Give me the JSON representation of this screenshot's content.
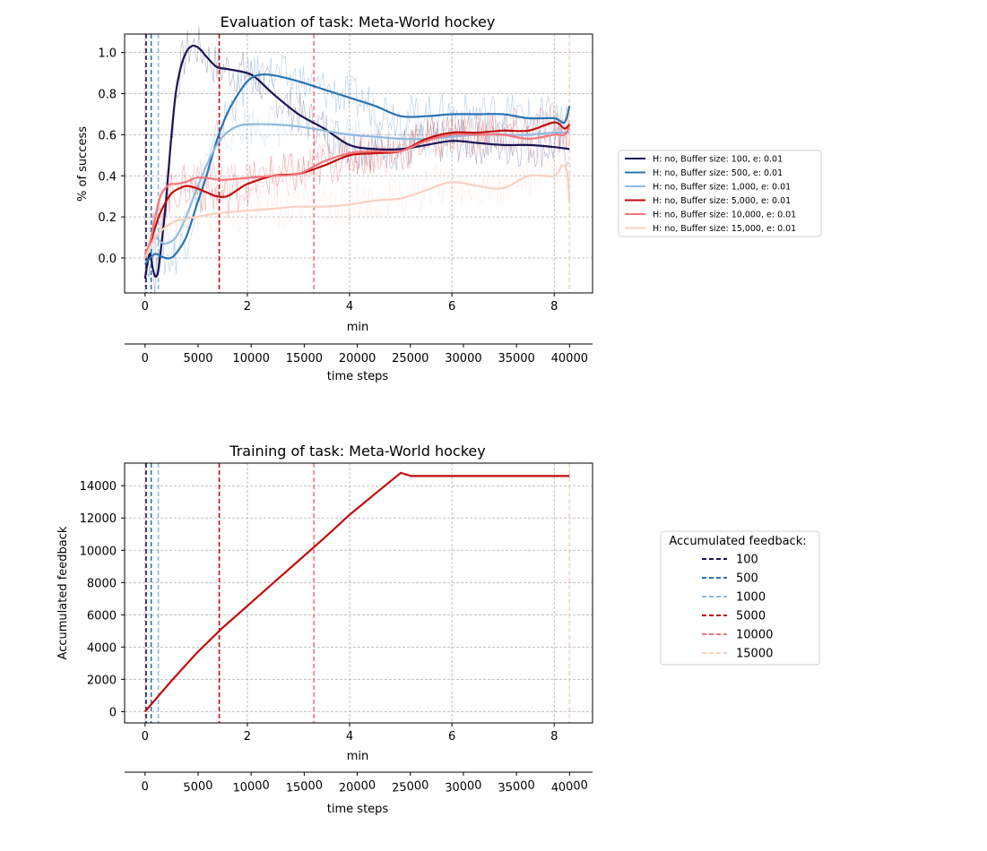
{
  "chart_data": [
    {
      "type": "line",
      "title": "Evaluation of task: Meta-World hockey",
      "xlabel": "min",
      "ylabel": "% of success",
      "secondary_xlabel": "time steps",
      "xlim": [
        -0.4,
        8.75
      ],
      "ylim": [
        -0.17,
        1.09
      ],
      "xticks": [
        0,
        2,
        4,
        6,
        8
      ],
      "yticks": [
        0.0,
        0.2,
        0.4,
        0.6,
        0.8,
        1.0
      ],
      "ytick_labels": [
        "0.0",
        "0.2",
        "0.4",
        "0.6",
        "0.8",
        "1.0"
      ],
      "secondary_xticks": [
        0,
        5000,
        10000,
        15000,
        20000,
        25000,
        30000,
        35000,
        40000
      ],
      "grid": true,
      "legend_placement": "outside-right",
      "series": [
        {
          "name": "H: no, Buffer size: 100, e: 0.01",
          "color": "#1a1456",
          "x": [
            0,
            0.05,
            0.1,
            0.15,
            0.2,
            0.25,
            0.3,
            0.4,
            0.5,
            0.6,
            0.7,
            0.8,
            0.9,
            1.0,
            1.1,
            1.2,
            1.4,
            1.6,
            2.0,
            2.2,
            2.5,
            3.0,
            3.5,
            4.0,
            4.5,
            5.0,
            5.5,
            6.0,
            6.5,
            7.0,
            7.5,
            8.0,
            8.3
          ],
          "y": [
            -0.1,
            -0.02,
            0.02,
            -0.05,
            -0.09,
            -0.07,
            0.02,
            0.25,
            0.55,
            0.8,
            0.93,
            1.0,
            1.03,
            1.03,
            1.01,
            0.98,
            0.93,
            0.92,
            0.9,
            0.87,
            0.8,
            0.7,
            0.63,
            0.55,
            0.53,
            0.53,
            0.55,
            0.57,
            0.56,
            0.55,
            0.55,
            0.54,
            0.53
          ]
        },
        {
          "name": "H: no, Buffer size: 500, e: 0.01",
          "color": "#2b74b3",
          "x": [
            0,
            0.1,
            0.2,
            0.3,
            0.4,
            0.5,
            0.6,
            0.8,
            1.0,
            1.2,
            1.4,
            1.6,
            1.8,
            2.0,
            2.2,
            2.5,
            3.0,
            3.5,
            4.0,
            4.5,
            5.0,
            5.5,
            6.0,
            6.5,
            7.0,
            7.5,
            8.0,
            8.2,
            8.3
          ],
          "y": [
            -0.03,
            0.0,
            0.02,
            0.01,
            0.0,
            0.0,
            0.02,
            0.1,
            0.25,
            0.4,
            0.57,
            0.7,
            0.79,
            0.86,
            0.89,
            0.89,
            0.86,
            0.82,
            0.78,
            0.74,
            0.69,
            0.69,
            0.7,
            0.7,
            0.7,
            0.68,
            0.68,
            0.66,
            0.74
          ]
        },
        {
          "name": "H: no, Buffer size: 1,000, e: 0.01",
          "color": "#8ebae0",
          "x": [
            0,
            0.1,
            0.2,
            0.3,
            0.4,
            0.6,
            0.8,
            1.0,
            1.2,
            1.4,
            1.6,
            1.8,
            2.0,
            2.5,
            3.0,
            3.5,
            4.0,
            4.5,
            5.0,
            5.5,
            6.0,
            6.5,
            7.0,
            7.5,
            8.0,
            8.3
          ],
          "y": [
            0.0,
            0.08,
            0.1,
            0.08,
            0.07,
            0.1,
            0.2,
            0.33,
            0.45,
            0.55,
            0.61,
            0.64,
            0.65,
            0.65,
            0.64,
            0.62,
            0.6,
            0.59,
            0.58,
            0.58,
            0.59,
            0.6,
            0.6,
            0.6,
            0.61,
            0.61
          ]
        },
        {
          "name": "H: no, Buffer size: 5,000, e: 0.01",
          "color": "#c00d0d",
          "x": [
            0,
            0.1,
            0.2,
            0.3,
            0.4,
            0.5,
            0.6,
            0.8,
            1.0,
            1.2,
            1.4,
            1.6,
            1.8,
            2.0,
            2.5,
            3.0,
            3.5,
            4.0,
            4.5,
            5.0,
            5.5,
            6.0,
            6.5,
            7.0,
            7.5,
            8.0,
            8.2,
            8.3
          ],
          "y": [
            0.0,
            0.07,
            0.15,
            0.22,
            0.27,
            0.31,
            0.33,
            0.35,
            0.34,
            0.32,
            0.3,
            0.3,
            0.33,
            0.36,
            0.4,
            0.41,
            0.45,
            0.5,
            0.51,
            0.52,
            0.58,
            0.61,
            0.61,
            0.62,
            0.62,
            0.66,
            0.63,
            0.65
          ]
        },
        {
          "name": "H: no, Buffer size: 10,000, e: 0.01",
          "color": "#f4767a",
          "x": [
            0,
            0.1,
            0.2,
            0.3,
            0.4,
            0.5,
            0.6,
            0.8,
            1.0,
            1.2,
            1.5,
            2.0,
            2.5,
            3.0,
            3.5,
            4.0,
            4.5,
            5.0,
            5.5,
            6.0,
            6.5,
            7.0,
            7.5,
            8.0,
            8.2,
            8.3
          ],
          "y": [
            0.02,
            0.08,
            0.2,
            0.3,
            0.34,
            0.36,
            0.36,
            0.37,
            0.39,
            0.39,
            0.38,
            0.39,
            0.4,
            0.41,
            0.47,
            0.51,
            0.52,
            0.52,
            0.57,
            0.6,
            0.6,
            0.6,
            0.58,
            0.6,
            0.6,
            0.64
          ]
        },
        {
          "name": "H: no, Buffer size: 15,000, e: 0.01",
          "color": "#f9d0c0",
          "x": [
            0,
            0.2,
            0.4,
            0.6,
            0.8,
            1.0,
            1.5,
            2.0,
            2.5,
            3.0,
            3.5,
            4.0,
            4.5,
            5.0,
            5.5,
            6.0,
            6.5,
            7.0,
            7.5,
            8.0,
            8.15,
            8.25,
            8.3
          ],
          "y": [
            0.0,
            0.1,
            0.15,
            0.18,
            0.19,
            0.2,
            0.22,
            0.23,
            0.24,
            0.25,
            0.25,
            0.26,
            0.28,
            0.29,
            0.33,
            0.37,
            0.35,
            0.34,
            0.4,
            0.4,
            0.45,
            0.42,
            0.27
          ]
        }
      ],
      "vlines": [
        {
          "x": 0.02,
          "color": "#1a1456"
        },
        {
          "x": 0.12,
          "color": "#2b74b3"
        },
        {
          "x": 0.26,
          "color": "#8ebae0"
        },
        {
          "x": 1.45,
          "color": "#c00d0d"
        },
        {
          "x": 3.3,
          "color": "#f4767a"
        },
        {
          "x": 8.3,
          "color": "#f9d0c0"
        }
      ]
    },
    {
      "type": "line",
      "title": "Training of task: Meta-World hockey",
      "xlabel": "min",
      "ylabel": "Accumulated feedback",
      "secondary_xlabel": "time steps",
      "xlim": [
        -0.4,
        8.75
      ],
      "ylim": [
        -700,
        15400
      ],
      "xticks": [
        0,
        2,
        4,
        6,
        8
      ],
      "yticks": [
        0,
        2000,
        4000,
        6000,
        8000,
        10000,
        12000,
        14000
      ],
      "secondary_xticks": [
        0,
        5000,
        10000,
        15000,
        20000,
        25000,
        30000,
        35000,
        40000
      ],
      "grid": true,
      "legend_title": "Accumulated feedback:",
      "legend_placement": "outside-right",
      "series": [
        {
          "name": "",
          "color": "#c00d0d",
          "x": [
            0,
            0.5,
            1.0,
            1.5,
            2.0,
            2.5,
            3.0,
            3.5,
            4.0,
            4.5,
            5.0,
            5.2,
            6.0,
            7.0,
            8.0,
            8.3
          ],
          "y": [
            0,
            1850,
            3600,
            5150,
            6550,
            7950,
            9350,
            10750,
            12200,
            13500,
            14800,
            14600,
            14600,
            14600,
            14600,
            14600
          ]
        }
      ],
      "vlines": [
        {
          "label": "100",
          "x": 0.02,
          "color": "#1a1456"
        },
        {
          "label": "500",
          "x": 0.12,
          "color": "#2b74b3"
        },
        {
          "label": "1000",
          "x": 0.26,
          "color": "#8ebae0"
        },
        {
          "label": "5000",
          "x": 1.45,
          "color": "#c00d0d"
        },
        {
          "label": "10000",
          "x": 3.3,
          "color": "#f4767a"
        },
        {
          "label": "15000",
          "x": 8.3,
          "color": "#f9d0c0"
        }
      ]
    }
  ]
}
